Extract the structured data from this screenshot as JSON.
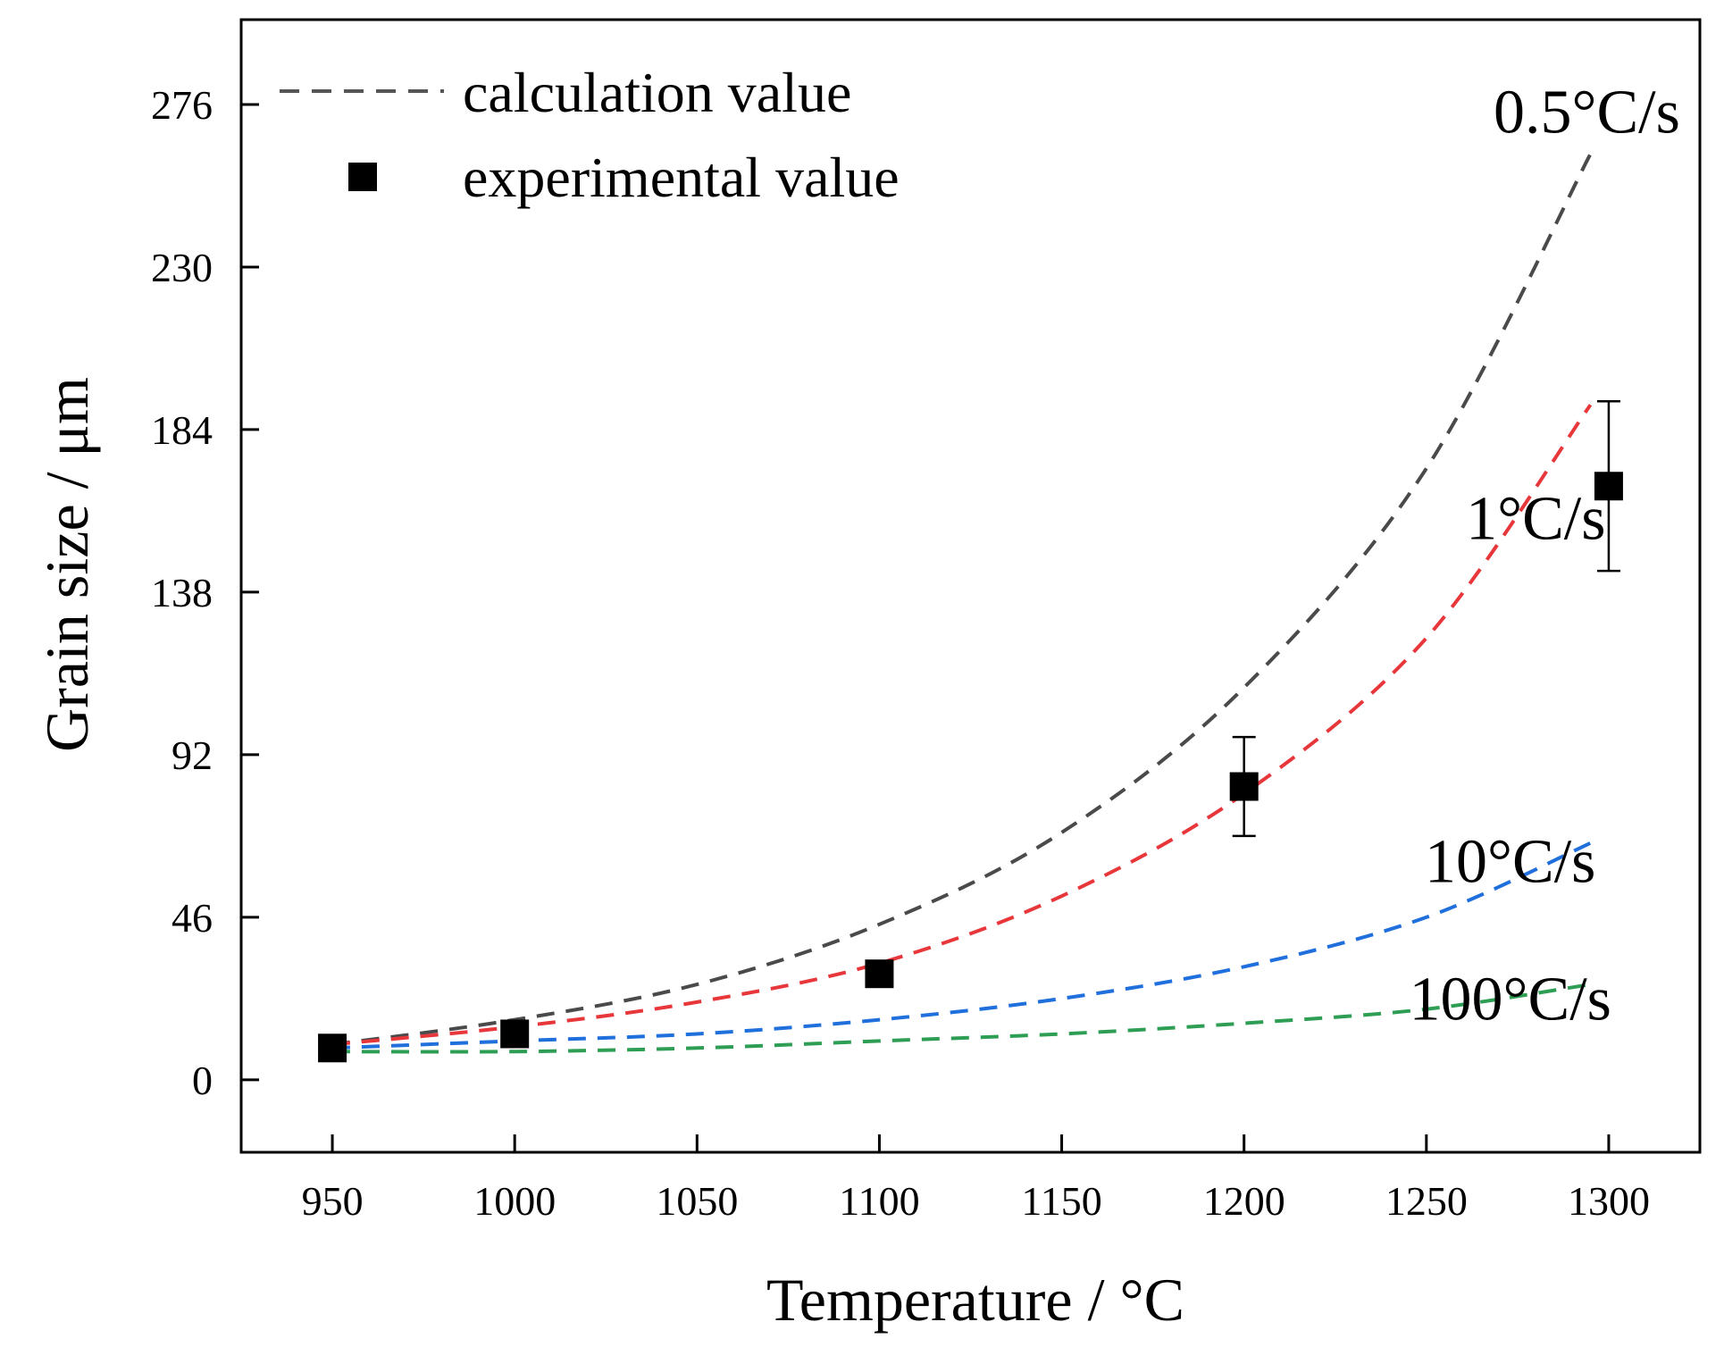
{
  "chart_data": {
    "type": "line",
    "xlabel": "Temperature / °C",
    "ylabel": "Grain size / μm",
    "xlim": [
      925,
      1325
    ],
    "ylim": [
      -20.5,
      300
    ],
    "xticks": [
      950,
      1000,
      1050,
      1100,
      1150,
      1200,
      1250,
      1300
    ],
    "yticks": [
      0,
      46,
      92,
      138,
      184,
      230,
      276
    ],
    "grid": false,
    "legend_position": "top-left",
    "legend": [
      {
        "label": "calculation value",
        "marker": "dashed-line",
        "color": "#555555"
      },
      {
        "label": "experimental value",
        "marker": "square",
        "color": "#000000"
      }
    ],
    "series": [
      {
        "name": "0.5°C/s",
        "style": "dashed",
        "color": "#4a4a4a",
        "x": [
          950,
          1000,
          1050,
          1100,
          1150,
          1200,
          1250,
          1295
        ],
        "y": [
          10,
          17,
          27,
          44,
          70,
          111,
          173,
          262
        ]
      },
      {
        "name": "1°C/s",
        "style": "dashed",
        "color": "#e8373a",
        "x": [
          950,
          1000,
          1050,
          1100,
          1150,
          1200,
          1250,
          1295
        ],
        "y": [
          10,
          15,
          22,
          33,
          52,
          81,
          125,
          191
        ]
      },
      {
        "name": "10°C/s",
        "style": "dashed",
        "color": "#1f6fdc",
        "x": [
          950,
          1000,
          1050,
          1100,
          1150,
          1200,
          1250,
          1295
        ],
        "y": [
          9,
          11,
          13,
          17,
          23,
          32,
          46,
          67
        ]
      },
      {
        "name": "100°C/s",
        "style": "dashed",
        "color": "#2e9e55",
        "x": [
          950,
          1000,
          1050,
          1100,
          1150,
          1200,
          1250,
          1295
        ],
        "y": [
          8,
          8,
          9,
          11,
          13,
          16,
          20,
          27
        ]
      }
    ],
    "experimental": {
      "x": [
        950,
        1000,
        1100,
        1200,
        1300
      ],
      "y": [
        9,
        13,
        30,
        83,
        168
      ],
      "err": [
        0,
        0,
        3,
        14,
        24
      ]
    },
    "annotations": [
      {
        "text": "0.5°C/s",
        "x": 1294,
        "y": 268
      },
      {
        "text": "1°C/s",
        "x": 1280,
        "y": 153
      },
      {
        "text": "10°C/s",
        "x": 1273,
        "y": 56
      },
      {
        "text": "100°C/s",
        "x": 1273,
        "y": 17
      }
    ]
  }
}
